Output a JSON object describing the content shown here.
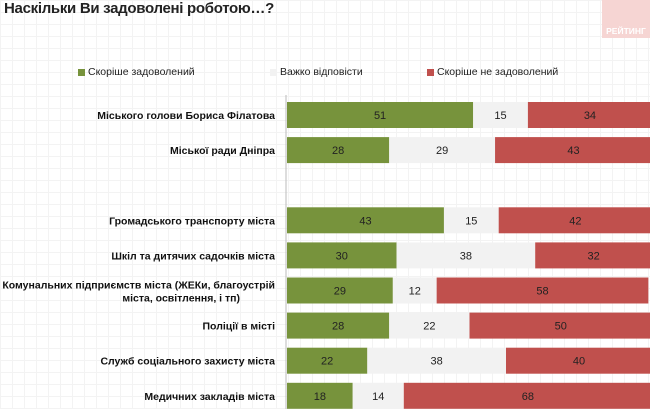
{
  "chart_data": {
    "type": "bar",
    "stacked": true,
    "orientation": "horizontal",
    "title": "Наскільки Ви задоволені роботою…?",
    "xlim": [
      0,
      100
    ],
    "grid": false,
    "legend_position": "top",
    "categories": [
      "Міського голови Бориса Філатова",
      "Міської ради Дніпра",
      "",
      "Громадського транспорту міста",
      "Шкіл та дитячих садочків міста",
      "Комунальних підприємств  міста (ЖЕКи, благоустрій міста, освітлення, і тп)",
      "Поліції в місті",
      "Служб соціального захисту міста",
      "Медичних закладів міста"
    ],
    "series": [
      {
        "name": "Скоріше задоволений",
        "color": "#77933c",
        "values": [
          51,
          28,
          null,
          43,
          30,
          29,
          28,
          22,
          18
        ]
      },
      {
        "name": "Важко відповісти",
        "color": "#f2f2f2",
        "values": [
          15,
          29,
          null,
          15,
          38,
          12,
          22,
          38,
          14
        ]
      },
      {
        "name": "Скоріше не задоволений",
        "color": "#c0504d",
        "values": [
          34,
          43,
          null,
          42,
          32,
          58,
          50,
          40,
          68
        ]
      }
    ]
  },
  "logo_text": "РЕЙТИНГ"
}
